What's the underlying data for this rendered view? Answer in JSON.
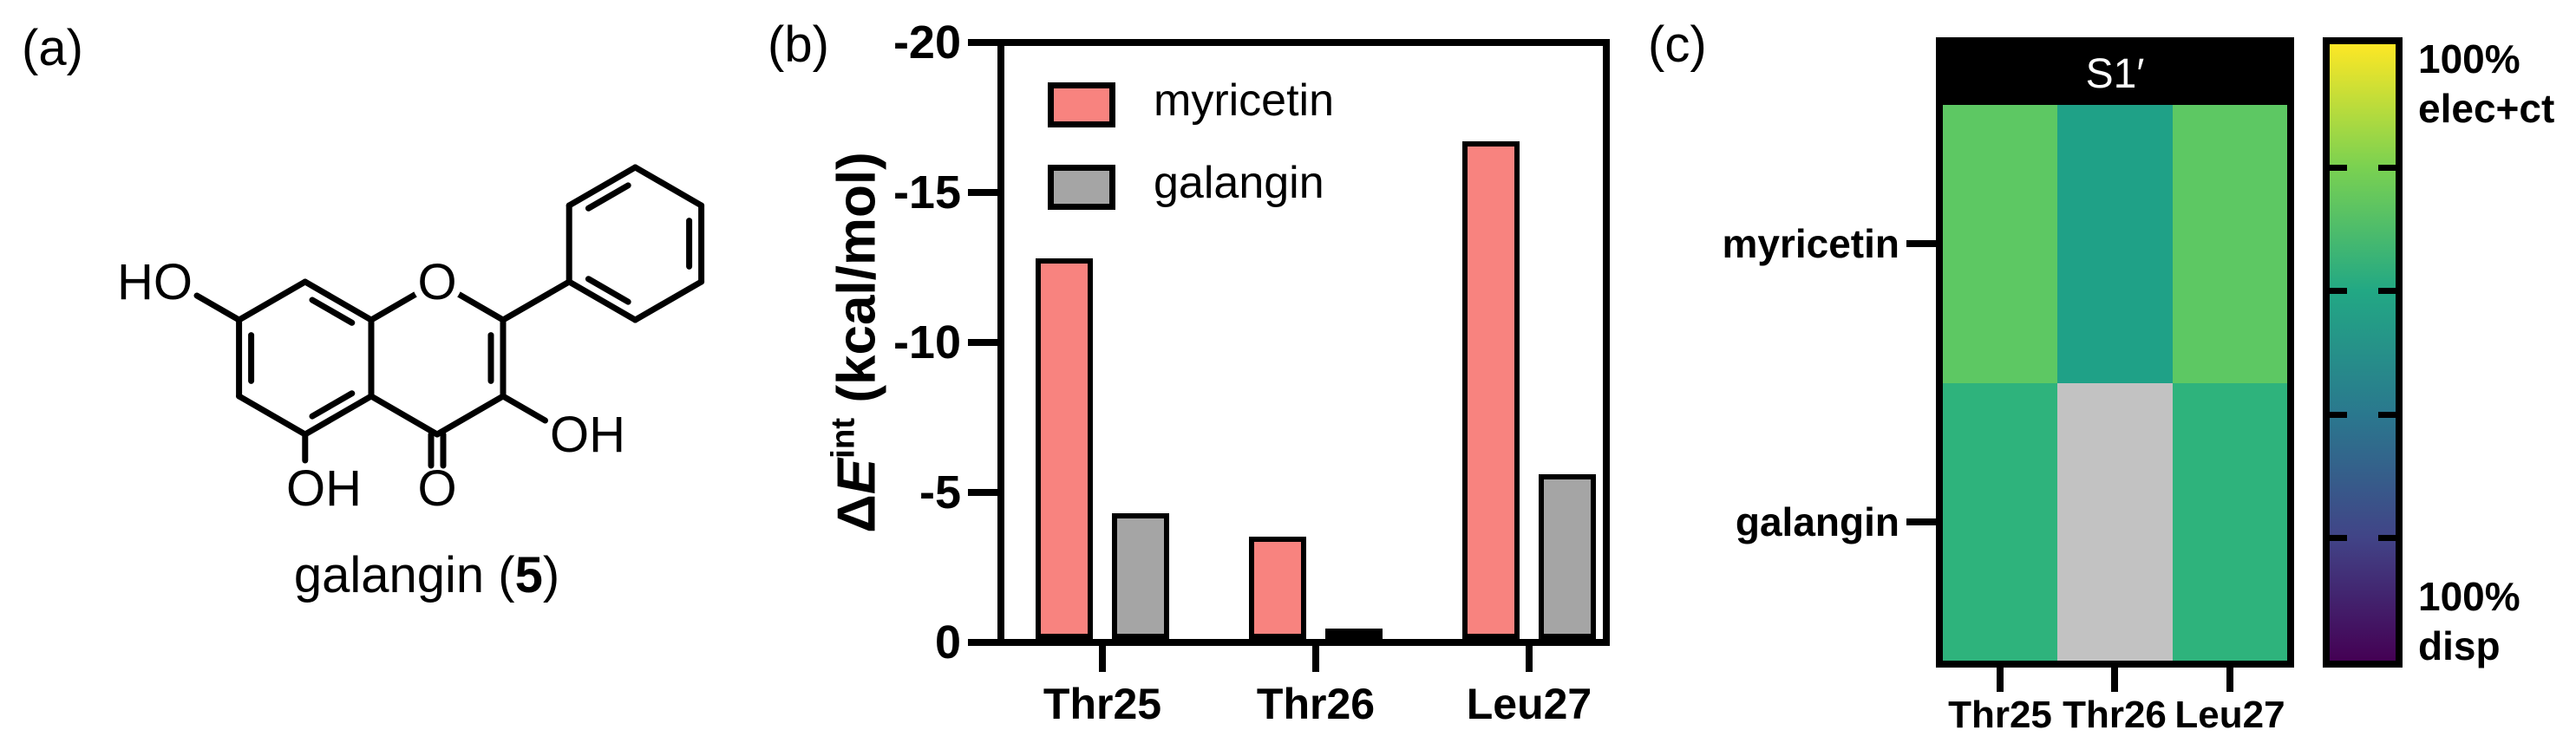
{
  "figure": {
    "panel_a": {
      "label": "(a)",
      "molecule": {
        "atoms": {
          "ho": "HO",
          "ring_o": "O",
          "oh_c3": "OH",
          "oh_c5": "OH",
          "keto_o": "O"
        },
        "caption_pre": "galangin (",
        "caption_num": "5",
        "caption_post": ")"
      }
    },
    "panel_b": {
      "label": "(b)",
      "ylabel_delta": "Δ",
      "ylabel_E": "E",
      "ylabel_sup": "int",
      "ylabel_rest": " (kcal/mol)"
    },
    "panel_c": {
      "label": "(c)"
    }
  },
  "chart_data": [
    {
      "type": "bar",
      "title": "",
      "categories": [
        "Thr25",
        "Thr26",
        "Leu27"
      ],
      "series": [
        {
          "name": "myricetin",
          "color": "#F8837F",
          "values": [
            -12.7,
            -3.4,
            -16.6
          ]
        },
        {
          "name": "galangin",
          "color": "#A5A5A5",
          "values": [
            -4.2,
            -0.25,
            -5.5
          ]
        }
      ],
      "ylabel": "ΔE^int (kcal/mol)",
      "ylim": [
        0,
        -20
      ],
      "yticks": [
        0,
        -5,
        -10,
        -15,
        -20
      ],
      "axis_inverted": true,
      "bar_border_color": "#000000",
      "legend_position": "top-left",
      "grid": false
    },
    {
      "type": "heatmap",
      "title": "S1′",
      "rows": [
        "myricetin",
        "galangin"
      ],
      "columns": [
        "Thr25",
        "Thr26",
        "Leu27"
      ],
      "values_percent_elec_ct": [
        [
          75,
          57,
          75
        ],
        [
          66,
          null,
          66
        ]
      ],
      "cell_colors": [
        [
          "#5DC863",
          "#1FA187",
          "#5DC863"
        ],
        [
          "#2EB37C",
          "#C2C2C2",
          "#2EB37C"
        ]
      ],
      "no_data_color": "#C2C2C2",
      "colorbar": {
        "colormap": "viridis",
        "gradient_stops": [
          "#440154",
          "#414487",
          "#2A788E",
          "#22A884",
          "#7AD151",
          "#FDE725"
        ],
        "label_top1": "100%",
        "label_top2": "elec+ct",
        "label_bottom1": "100%",
        "label_bottom2": "disp"
      }
    }
  ]
}
